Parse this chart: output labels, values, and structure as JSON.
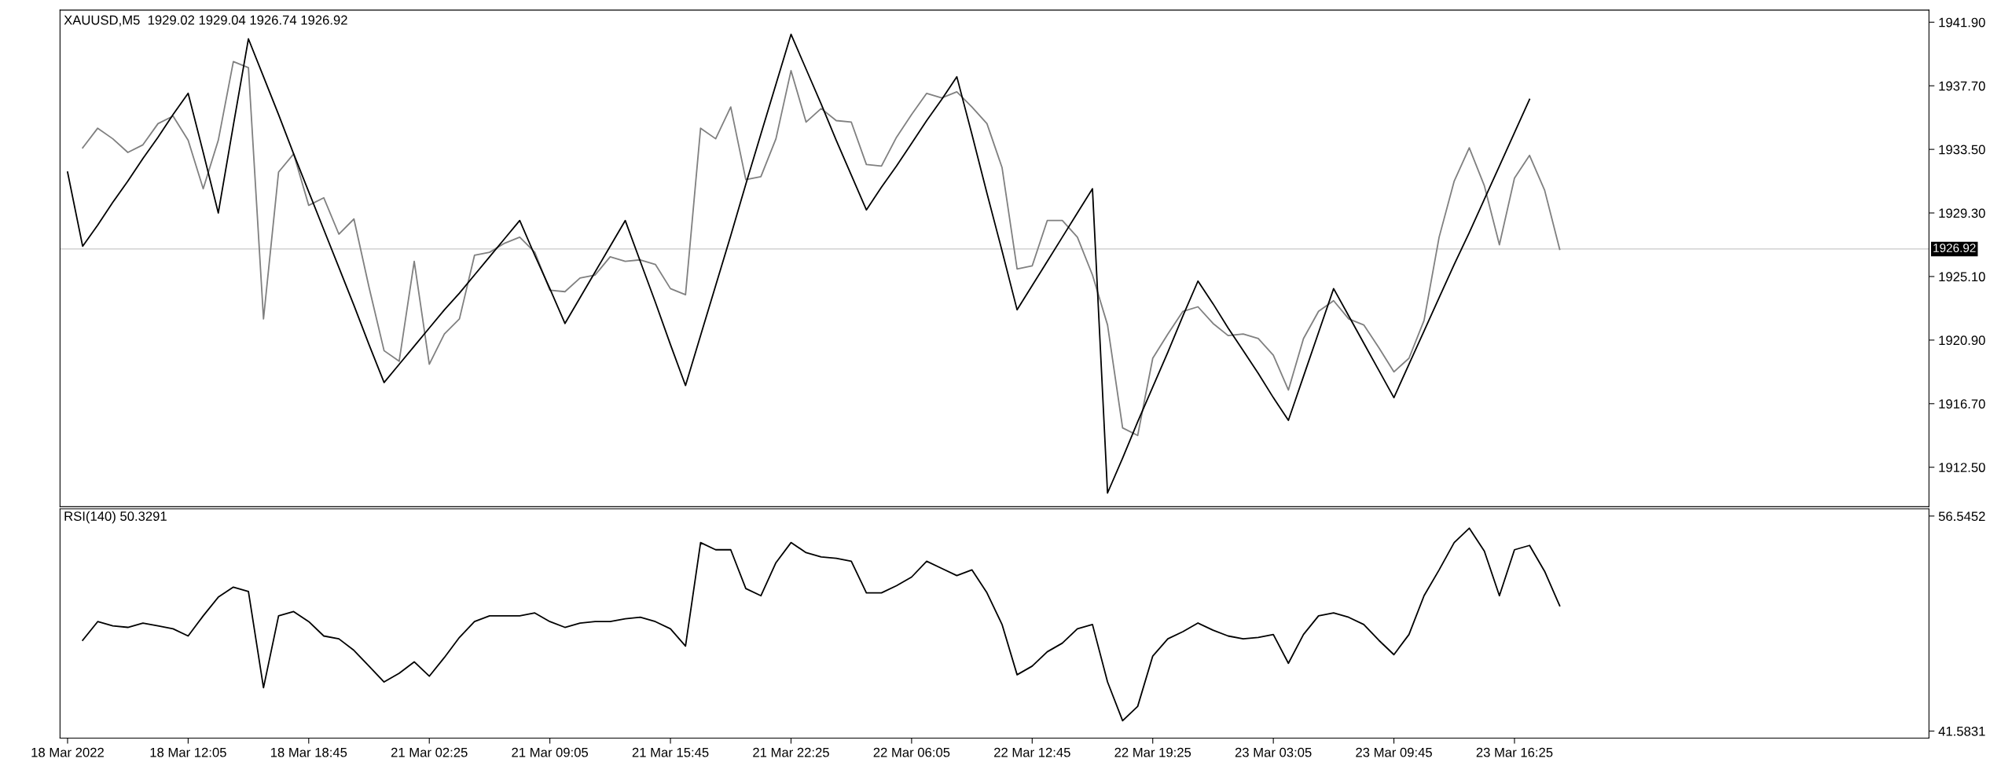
{
  "chart_data": [
    {
      "type": "line",
      "title": "XAUUSD,M5  1929.02 1929.04 1926.74 1926.92",
      "categories": [
        null,
        null,
        null,
        null,
        null,
        null,
        null,
        null,
        null,
        null,
        null,
        null,
        null,
        null,
        null,
        null,
        null,
        null,
        null,
        null,
        null,
        null,
        null,
        null,
        null,
        null,
        null,
        null,
        null,
        null,
        null,
        null,
        null,
        null,
        null,
        null,
        null,
        null,
        null,
        null,
        null,
        null,
        null,
        null,
        null,
        null,
        null,
        null,
        null,
        null,
        null,
        null,
        null,
        null,
        null,
        null,
        null,
        null,
        null,
        null,
        null,
        null,
        null,
        null,
        null,
        null,
        null,
        null,
        null,
        null,
        null,
        null,
        null,
        null,
        null,
        null,
        null,
        null,
        null,
        null,
        null,
        null,
        null,
        null,
        null,
        null,
        null,
        null,
        null,
        null,
        null,
        null,
        null,
        null,
        null,
        null,
        null,
        null,
        null,
        null,
        null,
        null,
        null,
        null,
        null,
        null,
        null,
        null,
        null,
        null,
        null,
        null,
        null,
        null,
        null,
        null,
        null,
        null,
        null,
        null,
        null,
        null,
        null,
        null
      ],
      "ylim": [
        1909.9,
        1942.7
      ],
      "yticks": [
        {
          "value": 1912.5,
          "label": "1912.50"
        },
        {
          "value": 1916.7,
          "label": "1916.70"
        },
        {
          "value": 1920.9,
          "label": "1920.90"
        },
        {
          "value": 1925.1,
          "label": "1925.10"
        },
        {
          "value": 1929.3,
          "label": "1929.30"
        },
        {
          "value": 1933.5,
          "label": "1933.50"
        },
        {
          "value": 1937.7,
          "label": "1937.70"
        },
        {
          "value": 1941.9,
          "label": "1941.90"
        }
      ],
      "tick_labels": "y",
      "grid": false,
      "legend": false,
      "ref_lines": [
        {
          "axis": "y",
          "value": 1926.92,
          "label": "1926.92",
          "color": "#c8c8c8"
        }
      ],
      "series": [
        {
          "color": "#808080",
          "values": [
            null,
            1933.6,
            1934.9,
            1934.2,
            1933.3,
            1933.8,
            1935.2,
            1935.7,
            1934.1,
            1930.9,
            1934.1,
            1939.3,
            1938.9,
            1922.3,
            1932.0,
            1933.2,
            1929.8,
            1930.3,
            1927.9,
            1928.9,
            1924.4,
            1920.2,
            1919.5,
            1926.1,
            1919.3,
            1921.3,
            1922.3,
            1926.5,
            1926.7,
            1927.3,
            1927.7,
            1926.7,
            1924.2,
            1924.1,
            1925.0,
            1925.2,
            1926.4,
            1926.1,
            1926.2,
            1925.9,
            1924.3,
            1923.9,
            1934.9,
            1934.2,
            1936.3,
            1931.5,
            1931.7,
            1934.2,
            1938.7,
            1935.3,
            1936.2,
            1935.4,
            1935.3,
            1932.5,
            1932.4,
            1934.3,
            1935.8,
            1937.2,
            1936.9,
            1937.3,
            1936.3,
            1935.2,
            1932.3,
            1925.6,
            1925.8,
            1928.8,
            1928.8,
            1927.7,
            1925.2,
            1921.9,
            1915.1,
            1914.6,
            1919.7,
            1921.3,
            1922.8,
            1923.1,
            1922.0,
            1921.2,
            1921.3,
            1921.0,
            1919.9,
            1917.6,
            1921.0,
            1922.8,
            1923.5,
            1922.3,
            1921.9,
            1920.4,
            1918.8,
            1919.7,
            1922.2,
            1927.7,
            1931.4,
            1933.6,
            1931.1,
            1927.2,
            1931.6,
            1933.1,
            1930.8,
            1926.9,
            null,
            null,
            null,
            null,
            null,
            null,
            null,
            null,
            null,
            null,
            null,
            null,
            null,
            null,
            null,
            null,
            null,
            null,
            null,
            null,
            null,
            null,
            null,
            null
          ]
        },
        {
          "color": "#000000",
          "values": [
            1932.0,
            1927.1,
            1928.5,
            1930.0,
            1931.4,
            1932.9,
            1934.3,
            1935.8,
            1937.2,
            1933.3,
            1929.3,
            1935.1,
            1940.8,
            1938.3,
            1935.8,
            1933.2,
            1930.7,
            1928.2,
            1925.7,
            1923.2,
            1920.6,
            1918.1,
            1919.3,
            1920.5,
            1921.7,
            1922.9,
            1924.0,
            1925.2,
            1926.4,
            1927.6,
            1928.8,
            1926.5,
            1924.3,
            1922.0,
            1923.7,
            1925.4,
            1927.1,
            1928.8,
            1926.1,
            1923.4,
            1920.6,
            1917.9,
            1921.2,
            1924.5,
            1927.8,
            1931.2,
            1934.5,
            1937.8,
            1941.1,
            1938.8,
            1936.5,
            1934.1,
            1931.8,
            1929.5,
            1931.0,
            1932.4,
            1933.9,
            1935.4,
            1936.8,
            1938.3,
            1934.5,
            1930.6,
            1926.8,
            1922.9,
            1924.5,
            1926.1,
            1927.7,
            1929.3,
            1930.9,
            1910.8,
            1913.1,
            1915.5,
            1917.8,
            1920.1,
            1922.5,
            1924.8,
            1923.3,
            1921.7,
            1920.2,
            1918.7,
            1917.1,
            1915.6,
            1918.5,
            1921.4,
            1924.3,
            1922.5,
            1920.7,
            1918.9,
            1917.1,
            1919.3,
            1921.5,
            1923.7,
            1925.9,
            1928.0,
            1930.2,
            1932.4,
            1934.6,
            1936.8,
            null,
            null,
            null,
            null,
            null,
            null,
            null,
            null,
            null,
            null,
            null,
            null,
            null,
            null,
            null,
            null,
            null,
            null,
            null,
            null,
            null,
            null,
            null,
            null,
            null,
            null
          ]
        }
      ]
    },
    {
      "type": "line",
      "title": "RSI(140) 50.3291",
      "categories": [
        "18 Mar 2022",
        null,
        null,
        null,
        null,
        null,
        null,
        null,
        "18 Mar 12:05",
        null,
        null,
        null,
        null,
        null,
        null,
        null,
        "18 Mar 18:45",
        null,
        null,
        null,
        null,
        null,
        null,
        null,
        "21 Mar 02:25",
        null,
        null,
        null,
        null,
        null,
        null,
        null,
        "21 Mar 09:05",
        null,
        null,
        null,
        null,
        null,
        null,
        null,
        "21 Mar 15:45",
        null,
        null,
        null,
        null,
        null,
        null,
        null,
        "21 Mar 22:25",
        null,
        null,
        null,
        null,
        null,
        null,
        null,
        "22 Mar 06:05",
        null,
        null,
        null,
        null,
        null,
        null,
        null,
        "22 Mar 12:45",
        null,
        null,
        null,
        null,
        null,
        null,
        null,
        "22 Mar 19:25",
        null,
        null,
        null,
        null,
        null,
        null,
        null,
        "23 Mar 03:05",
        null,
        null,
        null,
        null,
        null,
        null,
        null,
        "23 Mar 09:45",
        null,
        null,
        null,
        null,
        null,
        null,
        null,
        "23 Mar 16:25",
        null,
        null,
        null,
        null,
        null,
        null,
        null,
        null,
        null,
        null,
        null,
        null,
        null,
        null,
        null,
        null,
        null,
        null,
        null,
        null,
        null,
        null,
        null,
        null,
        null,
        null,
        null
      ],
      "ylim": [
        41.09,
        57.04
      ],
      "yticks": [
        {
          "value": 41.5831,
          "label": "41.5831"
        },
        {
          "value": 56.5452,
          "label": "56.5452"
        }
      ],
      "grid": false,
      "legend": false,
      "series": [
        {
          "color": "#000000",
          "values": [
            null,
            47.9,
            49.2,
            48.9,
            48.8,
            49.1,
            48.9,
            48.7,
            48.2,
            49.6,
            50.9,
            51.6,
            51.3,
            44.6,
            49.6,
            49.9,
            49.2,
            48.2,
            48.0,
            47.2,
            46.1,
            45.0,
            45.6,
            46.4,
            45.4,
            46.7,
            48.1,
            49.2,
            49.6,
            49.6,
            49.6,
            49.8,
            49.2,
            48.8,
            49.1,
            49.2,
            49.2,
            49.4,
            49.5,
            49.2,
            48.7,
            47.5,
            54.7,
            54.2,
            54.2,
            51.5,
            51.0,
            53.3,
            54.7,
            54.0,
            53.7,
            53.6,
            53.4,
            51.2,
            51.2,
            51.7,
            52.3,
            53.4,
            52.9,
            52.4,
            52.8,
            51.2,
            49.0,
            45.5,
            46.1,
            47.1,
            47.7,
            48.7,
            49.0,
            45.0,
            42.3,
            43.3,
            46.8,
            48.0,
            48.5,
            49.1,
            48.6,
            48.2,
            48.0,
            48.1,
            48.3,
            46.3,
            48.3,
            49.6,
            49.8,
            49.5,
            49.0,
            47.9,
            46.9,
            48.3,
            51.0,
            52.8,
            54.7,
            55.7,
            54.1,
            51.0,
            54.2,
            54.5,
            52.7,
            50.3,
            null,
            null,
            null,
            null,
            null,
            null,
            null,
            null,
            null,
            null,
            null,
            null,
            null,
            null,
            null,
            null,
            null,
            null,
            null,
            null,
            null,
            null,
            null,
            null
          ]
        }
      ]
    }
  ]
}
